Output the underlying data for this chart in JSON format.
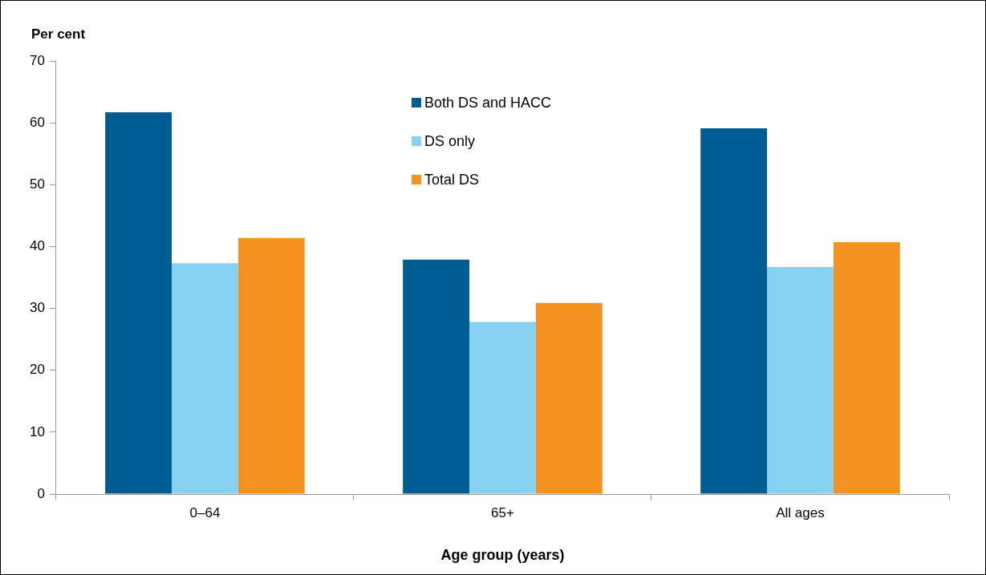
{
  "chart_data": {
    "type": "bar",
    "categories": [
      "0–64",
      "65+",
      "All ages"
    ],
    "series": [
      {
        "name": "Both DS and HACC",
        "color": "#005d93",
        "values": [
          61.7,
          37.9,
          59.1
        ]
      },
      {
        "name": "DS only",
        "color": "#87d1f3",
        "values": [
          37.3,
          27.8,
          36.7
        ]
      },
      {
        "name": "Total DS",
        "color": "#f5911f",
        "values": [
          41.4,
          30.9,
          40.7
        ]
      }
    ],
    "ylabel": "Per cent",
    "xlabel": "Age group (years)",
    "ylim": [
      0,
      70
    ],
    "yticks": [
      0,
      10,
      20,
      30,
      40,
      50,
      60,
      70
    ],
    "grid": false,
    "legend": "top"
  }
}
